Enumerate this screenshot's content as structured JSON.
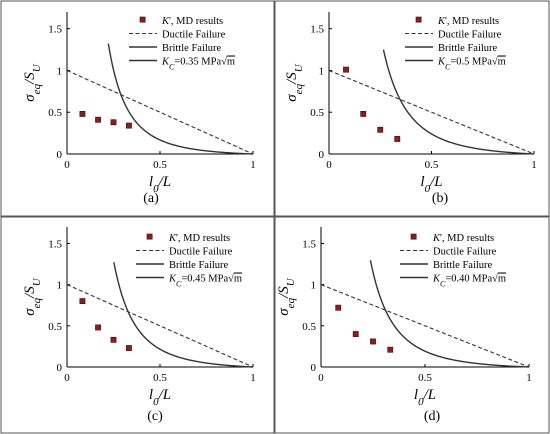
{
  "chart_data": [
    {
      "type": "line",
      "panel": "(a)",
      "xlabel": "l0/L",
      "ylabel": "σeq/SU",
      "xlim": [
        0,
        1
      ],
      "ylim": [
        0,
        1.7
      ],
      "xticks": [
        0,
        0.5,
        1
      ],
      "yticks": [
        0,
        0.5,
        1,
        1.5
      ],
      "x_tick_labels": [
        "0",
        "0.5",
        "1"
      ],
      "y_tick_labels": [
        "0",
        "0.5",
        "1",
        "1.5"
      ],
      "kc": 0.35,
      "legend": {
        "placement": "top-right",
        "entries": [
          {
            "pre": "K",
            "post": "', MD results"
          },
          {
            "text": "Ductile Failure"
          },
          {
            "text": "Brittle Failure"
          },
          {
            "sym": "K",
            "sub": "C",
            "val": "=0.35 MPa",
            "rt": "m"
          }
        ]
      },
      "series": [
        {
          "kind": "markers",
          "x": [
            0.083,
            0.167,
            0.25,
            0.333
          ],
          "y": [
            0.48,
            0.41,
            0.38,
            0.34
          ]
        },
        {
          "kind": "dashed",
          "x": [
            0,
            1
          ],
          "y": [
            1,
            0
          ]
        },
        {
          "kind": "solid"
        }
      ]
    },
    {
      "type": "line",
      "panel": "(b)",
      "xlabel": "l0/L",
      "ylabel": "σeq/SU",
      "xlim": [
        0,
        1
      ],
      "ylim": [
        0,
        1.7
      ],
      "xticks": [
        0,
        0.5,
        1
      ],
      "yticks": [
        0,
        0.5,
        1,
        1.5
      ],
      "x_tick_labels": [
        "0",
        "0.5",
        "1"
      ],
      "y_tick_labels": [
        "0",
        "0.5",
        "1",
        "1.5"
      ],
      "kc": 0.5,
      "legend": {
        "placement": "top-right",
        "entries": [
          {
            "pre": "K",
            "post": "', MD results"
          },
          {
            "text": "Ductile Failure"
          },
          {
            "text": "Brittle Failure"
          },
          {
            "sym": "K",
            "sub": "C",
            "val": "=0.5 MPa",
            "rt": "m"
          }
        ]
      },
      "series": [
        {
          "kind": "markers",
          "x": [
            0.083,
            0.167,
            0.25,
            0.333
          ],
          "y": [
            1.01,
            0.48,
            0.29,
            0.18
          ]
        },
        {
          "kind": "dashed",
          "x": [
            0,
            1
          ],
          "y": [
            1,
            0
          ]
        },
        {
          "kind": "solid"
        }
      ]
    },
    {
      "type": "line",
      "panel": "(c)",
      "xlabel": "l0/L",
      "ylabel": "σeq/SU",
      "xlim": [
        0,
        1
      ],
      "ylim": [
        0,
        1.7
      ],
      "xticks": [
        0,
        0.5,
        1
      ],
      "yticks": [
        0,
        0.5,
        1,
        1.5
      ],
      "x_tick_labels": [
        "0",
        "0.5",
        "1"
      ],
      "y_tick_labels": [
        "0",
        "0.5",
        "1",
        "1.5"
      ],
      "kc": 0.45,
      "legend": {
        "placement": "top-right",
        "entries": [
          {
            "pre": "K",
            "post": "', MD results"
          },
          {
            "text": "Ductile Failure"
          },
          {
            "text": "Brittle Failure"
          },
          {
            "sym": "K",
            "sub": "C",
            "val": "=0.45 MPa",
            "rt": "m"
          }
        ]
      },
      "series": [
        {
          "kind": "markers",
          "x": [
            0.083,
            0.167,
            0.25,
            0.333
          ],
          "y": [
            0.8,
            0.48,
            0.33,
            0.23
          ]
        },
        {
          "kind": "dashed",
          "x": [
            0,
            1
          ],
          "y": [
            1,
            0
          ]
        },
        {
          "kind": "solid"
        }
      ]
    },
    {
      "type": "line",
      "panel": "(d)",
      "xlabel": "l0/L",
      "ylabel": "σeq/SU",
      "xlim": [
        0,
        1
      ],
      "ylim": [
        0,
        1.7
      ],
      "xticks": [
        0,
        0.5,
        1
      ],
      "yticks": [
        0,
        0.5,
        1,
        1.5
      ],
      "x_tick_labels": [
        "0",
        "0.5",
        "1"
      ],
      "y_tick_labels": [
        "0",
        "0.5",
        "1",
        "1.5"
      ],
      "kc": 0.4,
      "legend": {
        "placement": "top-right",
        "entries": [
          {
            "pre": "K",
            "post": "', MD results"
          },
          {
            "text": "Ductile Failure"
          },
          {
            "text": "Brittle Failure"
          },
          {
            "sym": "K",
            "sub": "C",
            "val": "=0.40 MPa",
            "rt": "m"
          }
        ]
      },
      "series": [
        {
          "kind": "markers",
          "x": [
            0.083,
            0.167,
            0.25,
            0.333
          ],
          "y": [
            0.72,
            0.4,
            0.31,
            0.21
          ]
        },
        {
          "kind": "dashed",
          "x": [
            0,
            1
          ],
          "y": [
            1,
            0
          ]
        },
        {
          "kind": "solid"
        }
      ]
    }
  ],
  "colors": {
    "marker_fill": "#8b1e1e",
    "marker_edge": "#3a0a0a",
    "line": "#333333",
    "frame": "#555555"
  }
}
